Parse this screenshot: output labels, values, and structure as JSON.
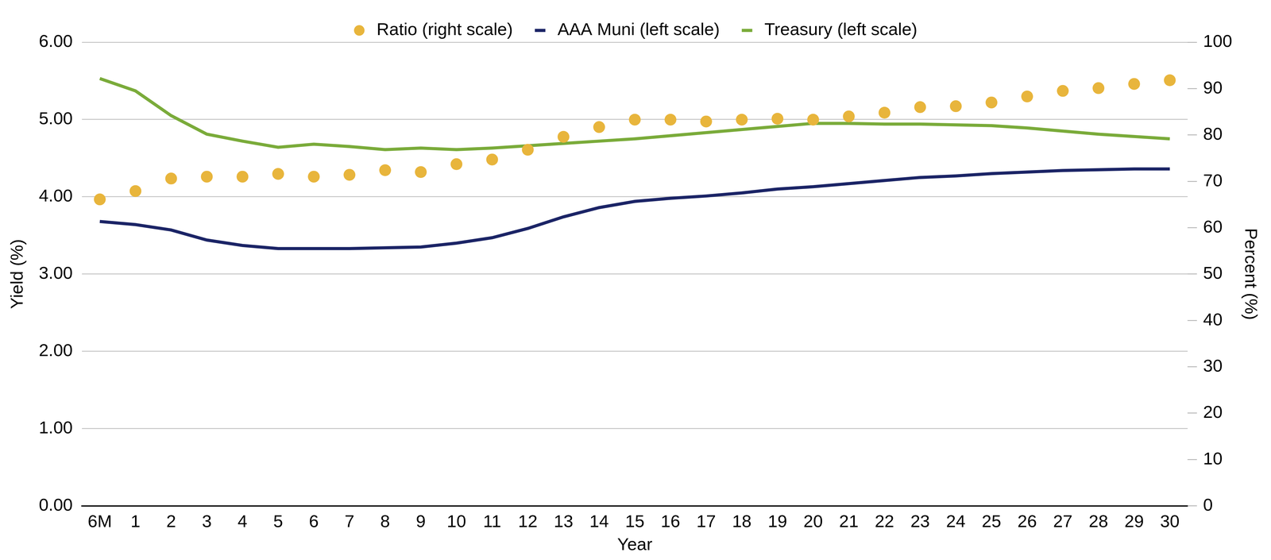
{
  "chart_data": {
    "type": "line",
    "x_label": "Year",
    "y_label": "Yield (%)",
    "y2_label": "Percent (%)",
    "categories": [
      "6M",
      "1",
      "2",
      "3",
      "4",
      "5",
      "6",
      "7",
      "8",
      "9",
      "10",
      "11",
      "12",
      "13",
      "14",
      "15",
      "16",
      "17",
      "18",
      "19",
      "20",
      "21",
      "22",
      "23",
      "24",
      "25",
      "26",
      "27",
      "28",
      "29",
      "30"
    ],
    "series": [
      {
        "name": "AAA Muni (left scale)",
        "color": "#1b2466",
        "type": "line",
        "axis": "y",
        "values": [
          3.68,
          3.64,
          3.57,
          3.44,
          3.37,
          3.33,
          3.33,
          3.33,
          3.34,
          3.35,
          3.4,
          3.47,
          3.59,
          3.74,
          3.86,
          3.94,
          3.98,
          4.01,
          4.05,
          4.1,
          4.13,
          4.17,
          4.21,
          4.25,
          4.27,
          4.3,
          4.32,
          4.34,
          4.35,
          4.36,
          4.36
        ]
      },
      {
        "name": "Treasury (left scale)",
        "color": "#7aab3a",
        "type": "line",
        "axis": "y",
        "values": [
          5.53,
          5.37,
          5.05,
          4.81,
          4.72,
          4.64,
          4.68,
          4.65,
          4.61,
          4.63,
          4.61,
          4.63,
          4.66,
          4.69,
          4.72,
          4.75,
          4.79,
          4.83,
          4.87,
          4.91,
          4.95,
          4.95,
          4.94,
          4.94,
          4.93,
          4.92,
          4.89,
          4.85,
          4.81,
          4.78,
          4.75
        ]
      },
      {
        "name": "Ratio (right scale)",
        "color": "#e8b53c",
        "type": "scatter",
        "marker": "circle",
        "axis": "y2",
        "values": [
          66.1,
          67.9,
          70.6,
          71.0,
          71.0,
          71.6,
          71.0,
          71.4,
          72.4,
          72.0,
          73.7,
          74.7,
          76.8,
          79.6,
          81.7,
          83.3,
          83.3,
          82.9,
          83.3,
          83.5,
          83.3,
          84.0,
          84.8,
          86.0,
          86.2,
          87.0,
          88.3,
          89.5,
          90.1,
          91.0,
          91.8
        ]
      }
    ],
    "ylim": [
      0,
      6
    ],
    "yticks": [
      {
        "value": 0,
        "label": "0.00"
      },
      {
        "value": 1,
        "label": "1.00"
      },
      {
        "value": 2,
        "label": "2.00"
      },
      {
        "value": 3,
        "label": "3.00"
      },
      {
        "value": 4,
        "label": "4.00"
      },
      {
        "value": 5,
        "label": "5.00"
      },
      {
        "value": 6,
        "label": "6.00"
      }
    ],
    "y2lim": [
      0,
      100
    ],
    "y2ticks": [
      0,
      10,
      20,
      30,
      40,
      50,
      60,
      70,
      80,
      90,
      100
    ],
    "grid": true,
    "legend": "top"
  }
}
